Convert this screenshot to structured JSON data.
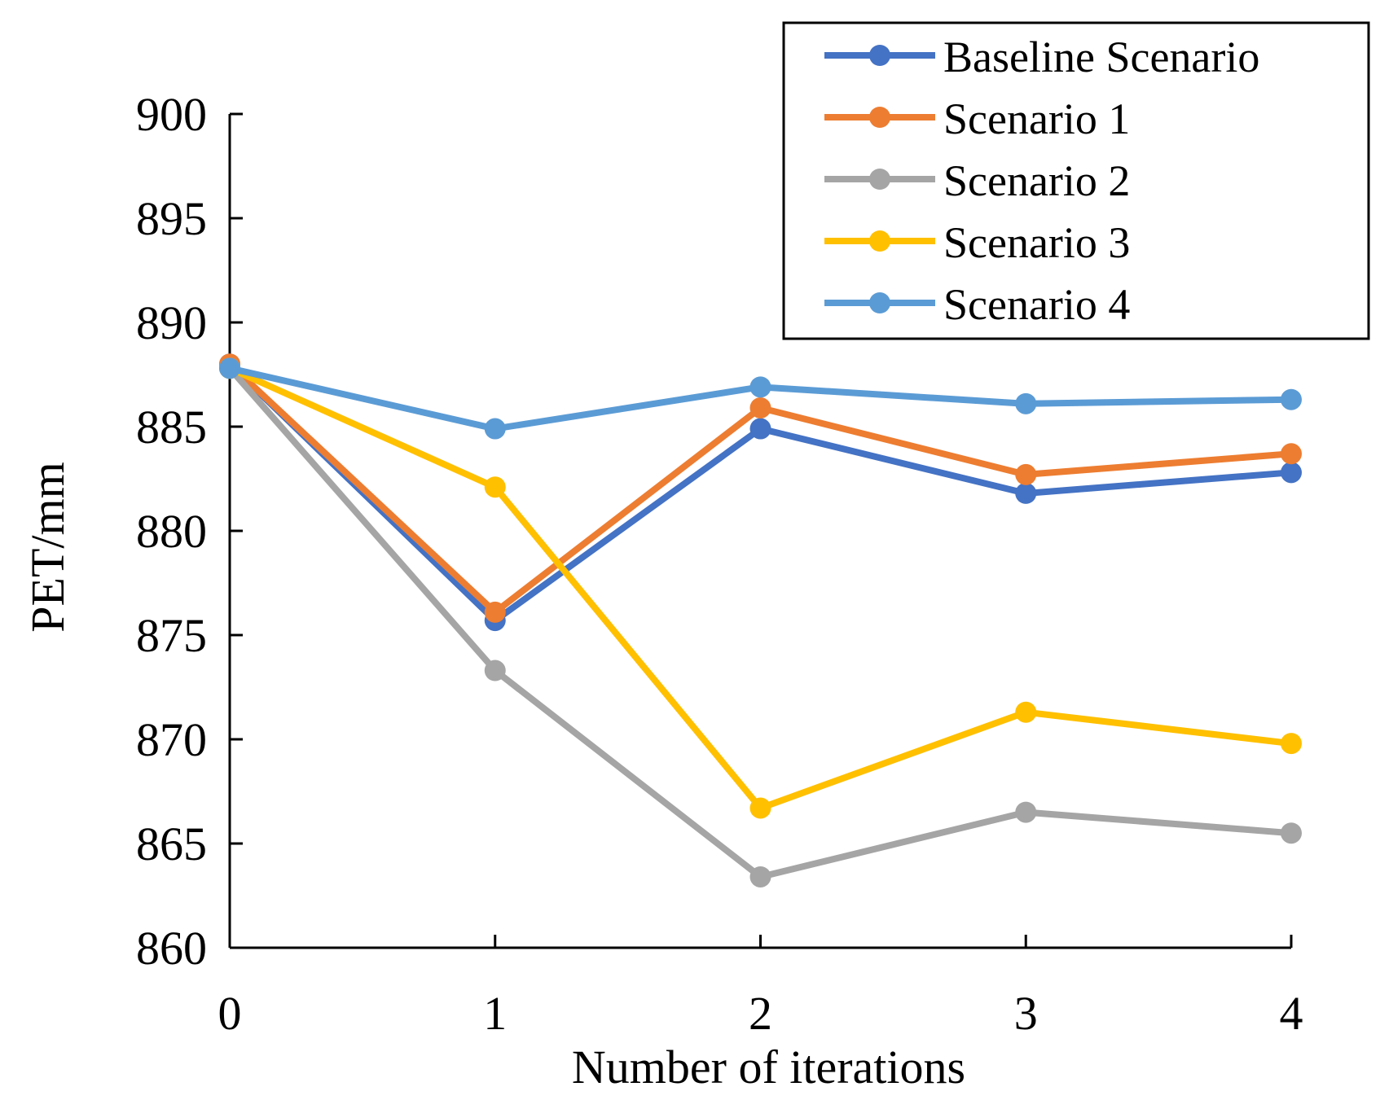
{
  "chart_data": {
    "type": "line",
    "title": "",
    "xlabel": "Number of iterations",
    "ylabel": "PET/mm",
    "x": [
      0,
      1,
      2,
      3,
      4
    ],
    "x_tick_labels": [
      "0",
      "1",
      "2",
      "3",
      "4"
    ],
    "ylim": [
      860,
      900
    ],
    "y_ticks": [
      860,
      865,
      870,
      875,
      880,
      885,
      890,
      895,
      900
    ],
    "y_tick_labels": [
      "860",
      "865",
      "870",
      "875",
      "880",
      "885",
      "890",
      "895",
      "900"
    ],
    "grid": false,
    "legend_position": "top-right",
    "series": [
      {
        "name": "Baseline Scenario",
        "color": "#4472C4",
        "values": [
          888.0,
          875.7,
          884.9,
          881.8,
          882.8
        ]
      },
      {
        "name": "Scenario 1",
        "color": "#ED7D31",
        "values": [
          888.0,
          876.1,
          885.9,
          882.7,
          883.7
        ]
      },
      {
        "name": "Scenario 2",
        "color": "#A5A5A5",
        "values": [
          887.8,
          873.3,
          863.4,
          866.5,
          865.5
        ]
      },
      {
        "name": "Scenario 3",
        "color": "#FFC000",
        "values": [
          887.8,
          882.1,
          866.7,
          871.3,
          869.8
        ]
      },
      {
        "name": "Scenario 4",
        "color": "#5B9BD5",
        "values": [
          887.8,
          884.9,
          886.9,
          886.1,
          886.3
        ]
      }
    ]
  }
}
